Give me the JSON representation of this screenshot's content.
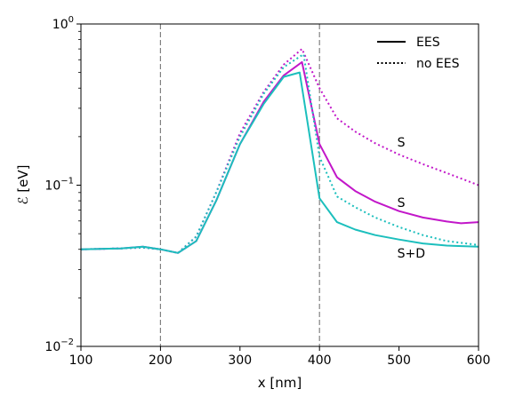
{
  "chart_data": {
    "type": "line",
    "xlabel": "x [nm]",
    "ylabel": "ℰ [eV]",
    "xlim": [
      100,
      600
    ],
    "ylim": [
      0.01,
      1
    ],
    "yscale": "log",
    "xticks": [
      100,
      200,
      300,
      400,
      500,
      600
    ],
    "xtick_labels": [
      "100",
      "200",
      "300",
      "400",
      "500",
      "600"
    ],
    "yticks": [
      0.01,
      0.1,
      1
    ],
    "ytick_labels": [
      {
        "base": "10",
        "exp": "−2"
      },
      {
        "base": "10",
        "exp": "−1"
      },
      {
        "base": "10",
        "exp": "0"
      }
    ],
    "vlines": [
      200,
      400
    ],
    "grid": false,
    "legend": {
      "position": "top-right",
      "entries": [
        {
          "label": "EES",
          "style": "solid"
        },
        {
          "label": "no EES",
          "style": "dotted"
        }
      ]
    },
    "colors": {
      "magenta": "#c217c9",
      "cyan": "#1cbfbd",
      "vline": "#808080"
    },
    "series": [
      {
        "color": "#c217c9",
        "style": "solid",
        "points": [
          [
            100,
            0.04
          ],
          [
            150,
            0.0405
          ],
          [
            178,
            0.0415
          ],
          [
            200,
            0.04
          ],
          [
            222,
            0.038
          ],
          [
            245,
            0.045
          ],
          [
            270,
            0.08
          ],
          [
            300,
            0.18
          ],
          [
            330,
            0.33
          ],
          [
            355,
            0.48
          ],
          [
            378,
            0.58
          ],
          [
            400,
            0.18
          ],
          [
            422,
            0.112
          ],
          [
            445,
            0.092
          ],
          [
            470,
            0.079
          ],
          [
            500,
            0.069
          ],
          [
            530,
            0.063
          ],
          [
            560,
            0.0595
          ],
          [
            578,
            0.058
          ],
          [
            600,
            0.059
          ]
        ]
      },
      {
        "color": "#c217c9",
        "style": "dotted",
        "points": [
          [
            100,
            0.04
          ],
          [
            150,
            0.0405
          ],
          [
            178,
            0.041
          ],
          [
            200,
            0.04
          ],
          [
            222,
            0.038
          ],
          [
            245,
            0.048
          ],
          [
            270,
            0.09
          ],
          [
            300,
            0.21
          ],
          [
            330,
            0.38
          ],
          [
            355,
            0.56
          ],
          [
            378,
            0.7
          ],
          [
            400,
            0.4
          ],
          [
            422,
            0.26
          ],
          [
            445,
            0.215
          ],
          [
            470,
            0.182
          ],
          [
            500,
            0.155
          ],
          [
            530,
            0.135
          ],
          [
            560,
            0.119
          ],
          [
            600,
            0.1
          ]
        ]
      },
      {
        "color": "#1cbfbd",
        "style": "solid",
        "points": [
          [
            100,
            0.04
          ],
          [
            150,
            0.0405
          ],
          [
            178,
            0.0415
          ],
          [
            200,
            0.04
          ],
          [
            222,
            0.038
          ],
          [
            245,
            0.045
          ],
          [
            270,
            0.08
          ],
          [
            300,
            0.18
          ],
          [
            330,
            0.32
          ],
          [
            355,
            0.47
          ],
          [
            375,
            0.5
          ],
          [
            400,
            0.083
          ],
          [
            422,
            0.059
          ],
          [
            445,
            0.053
          ],
          [
            470,
            0.049
          ],
          [
            500,
            0.046
          ],
          [
            530,
            0.0435
          ],
          [
            560,
            0.0422
          ],
          [
            600,
            0.0415
          ]
        ]
      },
      {
        "color": "#1cbfbd",
        "style": "dotted",
        "points": [
          [
            100,
            0.04
          ],
          [
            150,
            0.0405
          ],
          [
            178,
            0.041
          ],
          [
            200,
            0.04
          ],
          [
            222,
            0.038
          ],
          [
            245,
            0.048
          ],
          [
            270,
            0.09
          ],
          [
            300,
            0.2
          ],
          [
            330,
            0.37
          ],
          [
            355,
            0.54
          ],
          [
            380,
            0.65
          ],
          [
            400,
            0.15
          ],
          [
            422,
            0.085
          ],
          [
            445,
            0.073
          ],
          [
            470,
            0.063
          ],
          [
            500,
            0.055
          ],
          [
            530,
            0.049
          ],
          [
            560,
            0.045
          ],
          [
            600,
            0.0425
          ]
        ]
      }
    ],
    "annotations": [
      {
        "text": "S",
        "x": 500,
        "y": 0.185
      },
      {
        "text": "S",
        "x": 500,
        "y": 0.078
      },
      {
        "text": "S+D",
        "x": 500,
        "y": 0.038
      }
    ]
  }
}
